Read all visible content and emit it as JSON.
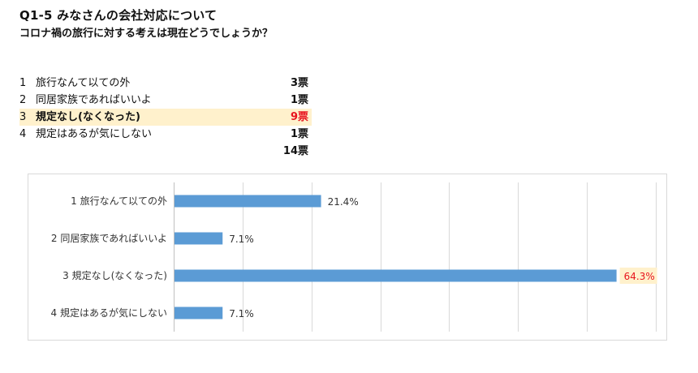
{
  "header": {
    "title": "Q1-5 みなさんの会社対応について",
    "subtitle": "コロナ禍の旅行に対する考えは現在どうでしょうか？"
  },
  "votes": {
    "rows": [
      {
        "num": "1",
        "label": "旅行なんて以ての外",
        "count": "3票"
      },
      {
        "num": "2",
        "label": "同居家族であればいいよ",
        "count": "1票"
      },
      {
        "num": "3",
        "label": "規定なし(なくなった)",
        "count": "9票",
        "highlight": true
      },
      {
        "num": "4",
        "label": "規定はあるが気にしない",
        "count": "1票"
      }
    ],
    "total": "14票"
  },
  "colors": {
    "bar": "#5b9bd5",
    "highlight_text": "#e8141e",
    "highlight_bg": "#fff1cc",
    "grid": "#d9d9d9"
  },
  "chart_data": {
    "type": "bar",
    "orientation": "horizontal",
    "categories": [
      "1 旅行なんて以ての外",
      "2 同居家族であればいいよ",
      "3 規定なし(なくなった)",
      "4 規定はあるが気にしない"
    ],
    "values": [
      21.4,
      7.1,
      64.3,
      7.1
    ],
    "data_labels": [
      "21.4%",
      "7.1%",
      "64.3%",
      "7.1%"
    ],
    "highlight_index": 2,
    "xlim": [
      0,
      70
    ],
    "grid": true,
    "title": "",
    "xlabel": "",
    "ylabel": ""
  }
}
